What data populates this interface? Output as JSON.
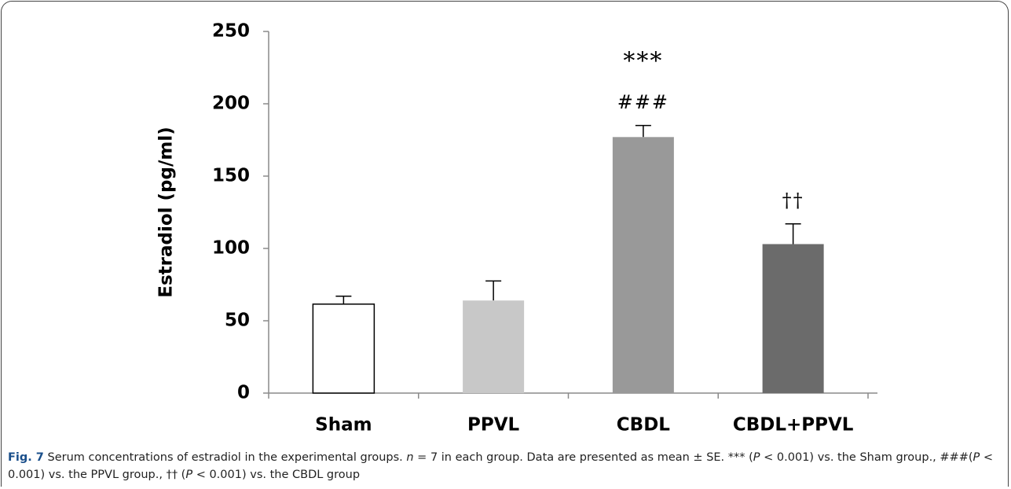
{
  "chart_data": {
    "type": "bar",
    "y_label": "Estradiol (pg/ml)",
    "categories": [
      "Sham",
      "PPVL",
      "CBDL",
      "CBDL+PPVL"
    ],
    "values": [
      61.5,
      64,
      177,
      103
    ],
    "errors": [
      5.5,
      13.5,
      8,
      14
    ],
    "colors": [
      "#ffffff",
      "#c8c8c8",
      "#999999",
      "#6b6b6b"
    ],
    "annotations": [
      null,
      null,
      [
        "***",
        "###"
      ],
      [
        "††"
      ]
    ],
    "ylim": [
      0,
      250
    ],
    "yticks": [
      0,
      50,
      100,
      150,
      200,
      250
    ],
    "grid": false
  },
  "caption": [
    {
      "text": "Fig. 7",
      "style": "bold"
    },
    {
      "text": " Serum concentrations of estradiol in the experimental groups. "
    },
    {
      "text": "n",
      "style": "italic"
    },
    {
      "text": " = 7 in each group. Data are presented as mean ± SE. *** ("
    },
    {
      "text": "P",
      "style": "italic"
    },
    {
      "text": " < 0.001) vs. the Sham group., ###("
    },
    {
      "text": "P",
      "style": "italic"
    },
    {
      "text": " < 0.001) vs. the PPVL group., †† ("
    },
    {
      "text": "P",
      "style": "italic"
    },
    {
      "text": " < 0.001) vs. the CBDL group"
    }
  ]
}
